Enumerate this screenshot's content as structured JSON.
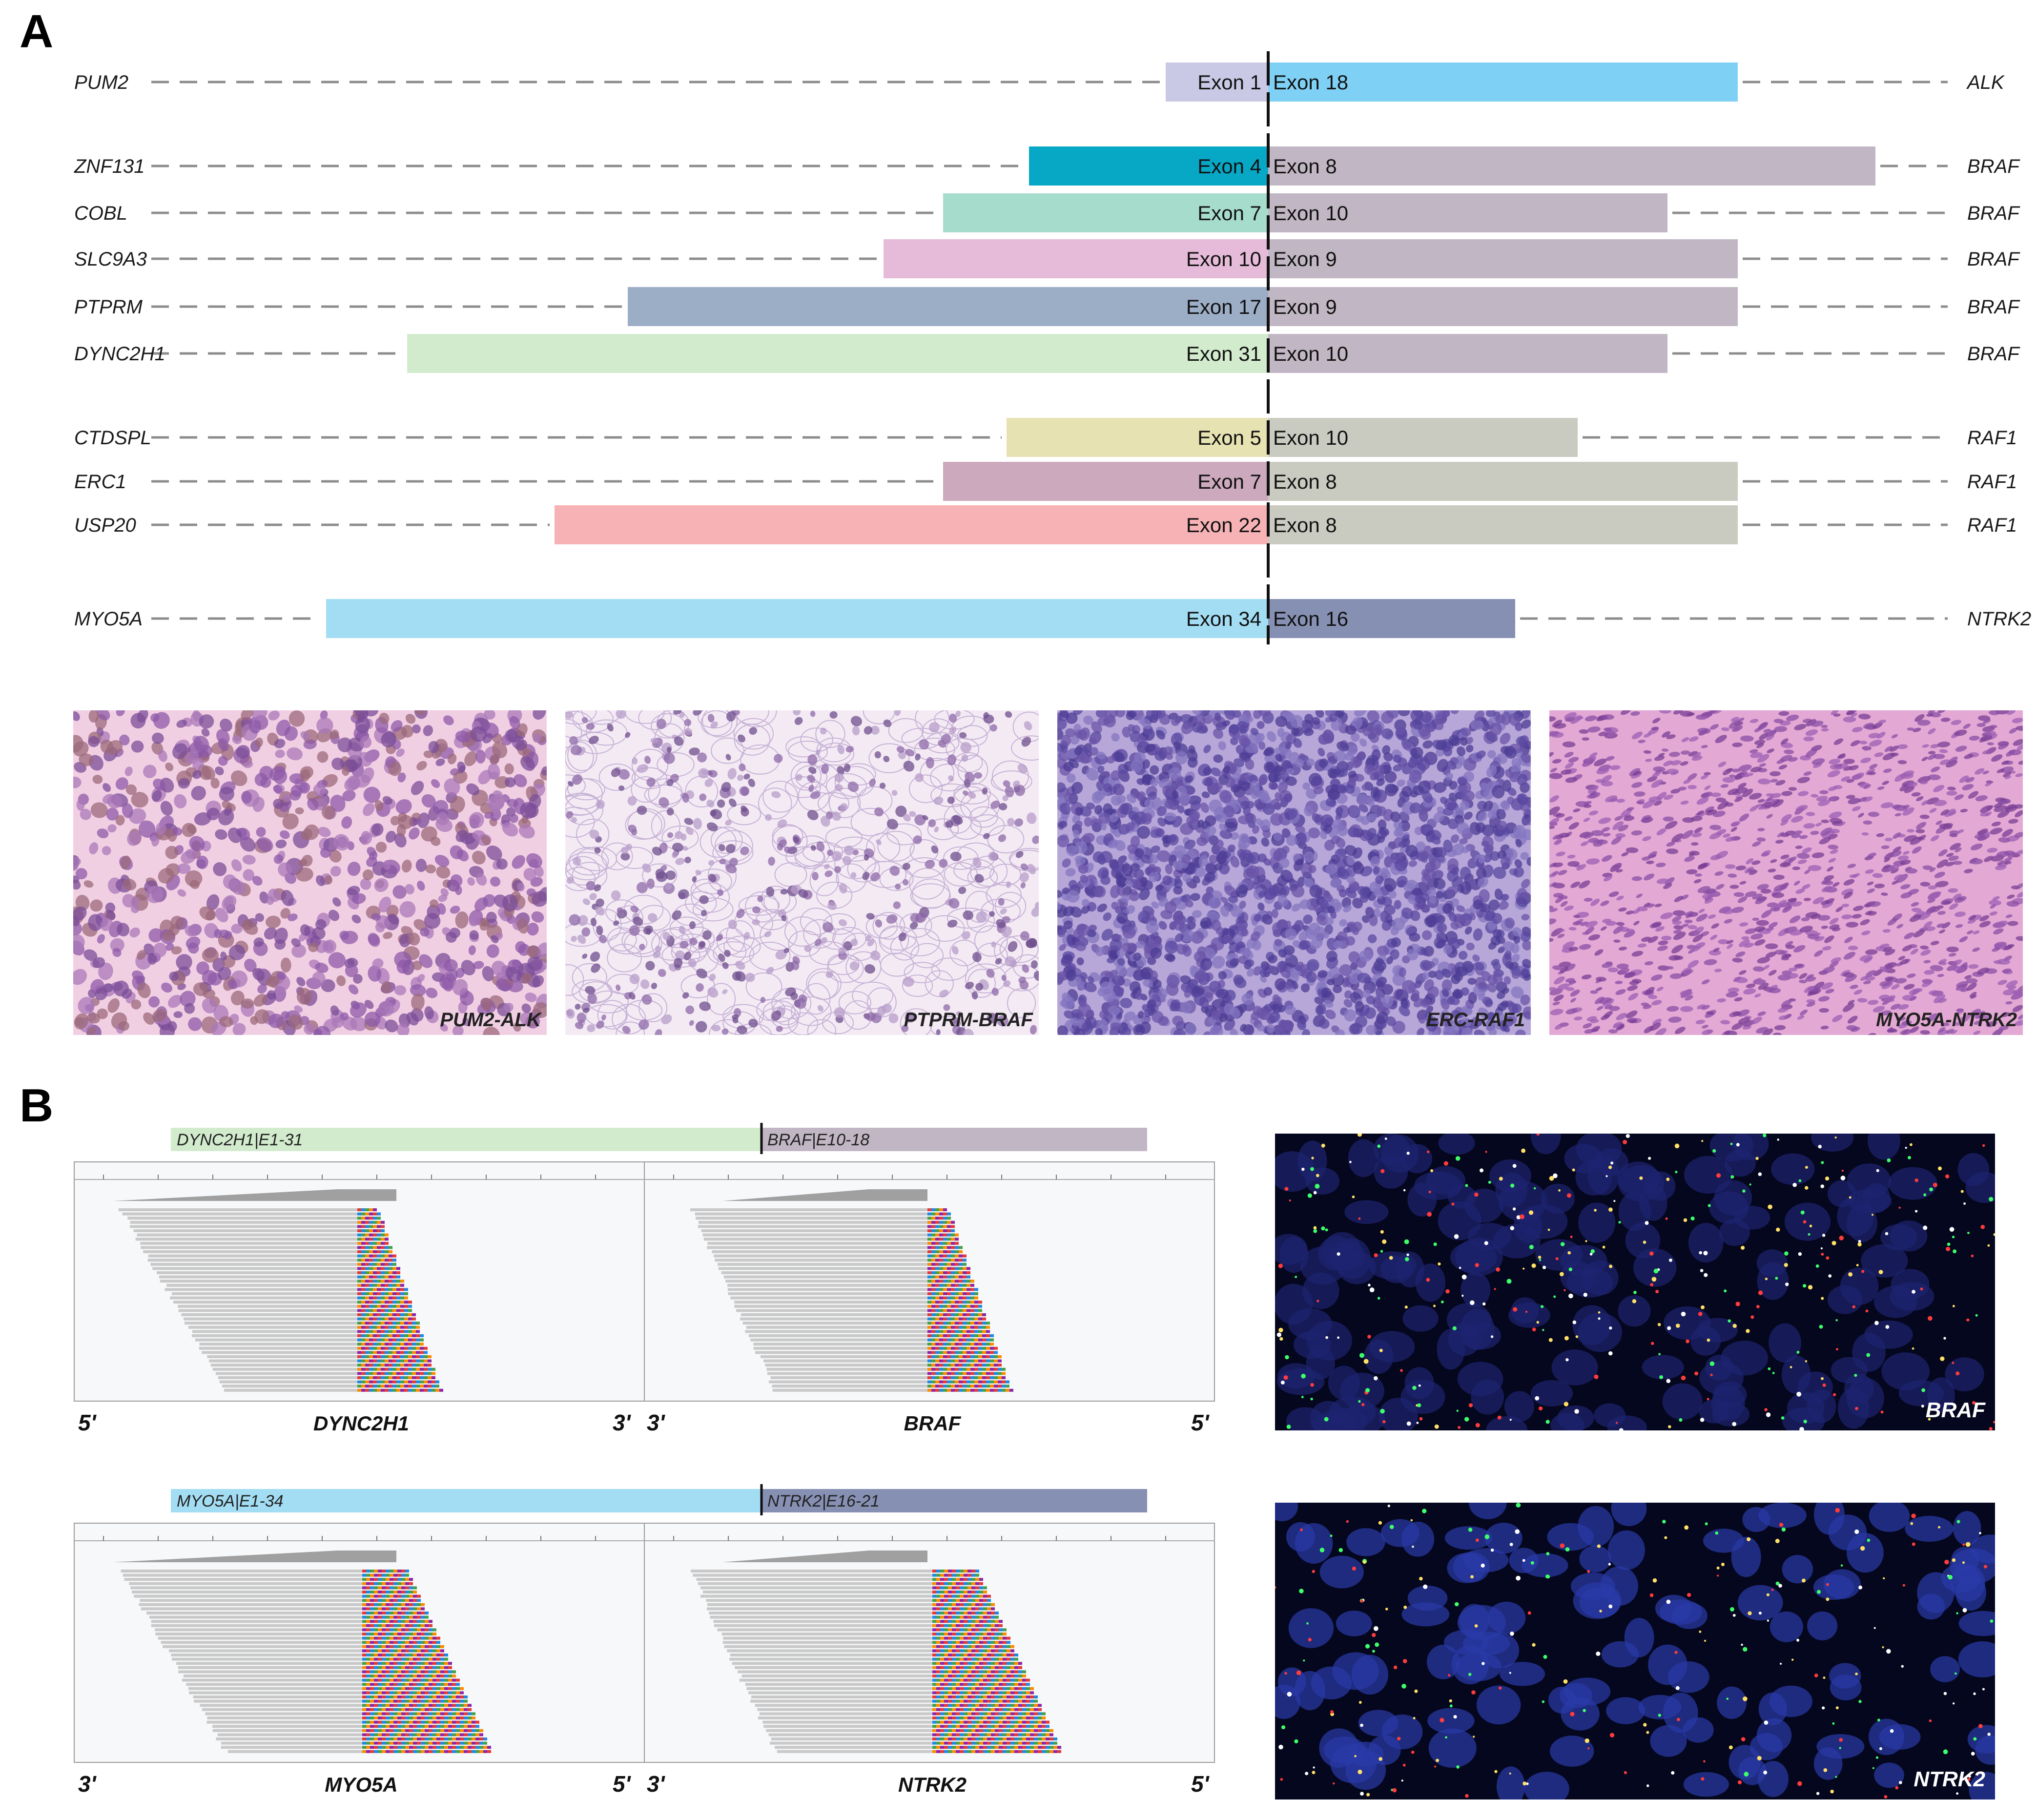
{
  "panel_a": {
    "letter": "A",
    "fusions": [
      {
        "left_gene": "PUM2",
        "left_exon": "Exon 1",
        "right_exon": "Exon 18",
        "right_gene": "ALK",
        "left_color": "#c9c9e6",
        "right_color": "#7fd0f5"
      },
      {
        "left_gene": "ZNF131",
        "left_exon": "Exon 4",
        "right_exon": "Exon 8",
        "right_gene": "BRAF",
        "left_color": "#06a8c6",
        "right_color": "#c1b6c3"
      },
      {
        "left_gene": "COBL",
        "left_exon": "Exon 7",
        "right_exon": "Exon 10",
        "right_gene": "BRAF",
        "left_color": "#a6dccb",
        "right_color": "#c1b6c3"
      },
      {
        "left_gene": "SLC9A3",
        "left_exon": "Exon 10",
        "right_exon": "Exon 9",
        "right_gene": "BRAF",
        "left_color": "#e5bbd9",
        "right_color": "#c1b6c3"
      },
      {
        "left_gene": "PTPRM",
        "left_exon": "Exon 17",
        "right_exon": "Exon 9",
        "right_gene": "BRAF",
        "left_color": "#9cadc6",
        "right_color": "#c1b6c3"
      },
      {
        "left_gene": "DYNC2H1",
        "left_exon": "Exon 31",
        "right_exon": "Exon 10",
        "right_gene": "BRAF",
        "left_color": "#d2ebcd",
        "right_color": "#c1b6c3"
      },
      {
        "left_gene": "CTDSPL",
        "left_exon": "Exon 5",
        "right_exon": "Exon 10",
        "right_gene": "RAF1",
        "left_color": "#e7e2b2",
        "right_color": "#c9cac0"
      },
      {
        "left_gene": "ERC1",
        "left_exon": "Exon 7",
        "right_exon": "Exon 8",
        "right_gene": "RAF1",
        "left_color": "#cca9bc",
        "right_color": "#c9cac0"
      },
      {
        "left_gene": "USP20",
        "left_exon": "Exon 22",
        "right_exon": "Exon 8",
        "right_gene": "RAF1",
        "left_color": "#f6b2b5",
        "right_color": "#c9cac0"
      },
      {
        "left_gene": "MYO5A",
        "left_exon": "Exon 34",
        "right_exon": "Exon 16",
        "right_gene": "NTRK2",
        "left_color": "#a3ddf3",
        "right_color": "#8690b3"
      }
    ],
    "histology": [
      {
        "caption": "PUM2-ALK",
        "style": "pink-sparse"
      },
      {
        "caption": "PTPRM-BRAF",
        "style": "clear-cell"
      },
      {
        "caption": "ERC-RAF1",
        "style": "blue-dense"
      },
      {
        "caption": "MYO5A-NTRK2",
        "style": "spindle"
      }
    ]
  },
  "panel_b": {
    "letter": "B",
    "igv": [
      {
        "left_label": "DYNC2H1|E1-31",
        "right_label": "BRAF|E10-18",
        "left_color": "#d2ebcd",
        "right_color": "#c1b6c3",
        "left_gene": "DYNC2H1",
        "right_gene": "BRAF",
        "left_end_a": "5'",
        "left_end_b": "3'",
        "right_end_a": "3'",
        "right_end_b": "5'"
      },
      {
        "left_label": "MYO5A|E1-34",
        "right_label": "NTRK2|E16-21",
        "left_color": "#a3ddf3",
        "right_color": "#8690b3",
        "left_gene": "MYO5A",
        "right_gene": "NTRK2",
        "left_end_a": "3'",
        "left_end_b": "5'",
        "right_end_a": "3'",
        "right_end_b": "5'"
      }
    ],
    "fish": [
      {
        "caption": "BRAF"
      },
      {
        "caption": "NTRK2"
      }
    ]
  }
}
